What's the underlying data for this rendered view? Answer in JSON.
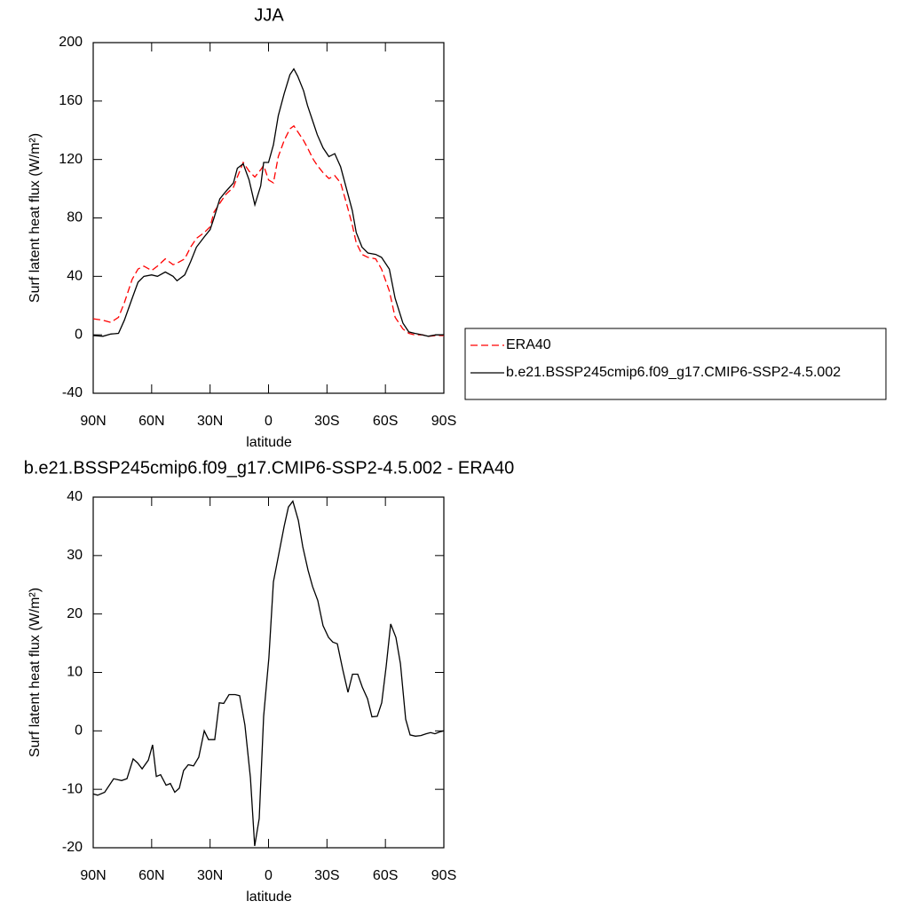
{
  "chart_data": [
    {
      "type": "line",
      "title": "JJA",
      "xlabel": "latitude",
      "ylabel": "Surf latent heat flux (W/m²)",
      "xlim": [
        90,
        -90
      ],
      "ylim": [
        -40,
        200
      ],
      "xticks": [
        {
          "value": 90,
          "label": "90N"
        },
        {
          "value": 60,
          "label": "60N"
        },
        {
          "value": 30,
          "label": "30N"
        },
        0,
        {
          "value": -30,
          "label": "30S"
        },
        {
          "value": -60,
          "label": "60S"
        },
        {
          "value": -90,
          "label": "90S"
        }
      ],
      "yticks": [
        -40,
        0,
        40,
        80,
        120,
        160,
        200
      ],
      "legend": "right",
      "x": [
        90,
        85,
        81,
        77,
        74,
        70,
        67,
        64,
        60,
        57,
        53,
        49,
        47,
        43,
        40,
        37,
        33,
        30,
        28,
        25,
        22,
        18,
        16,
        13,
        10,
        7,
        4,
        2.5,
        0,
        -2.5,
        -5,
        -8,
        -11,
        -13,
        -15,
        -18,
        -20,
        -23,
        -25,
        -28,
        -31,
        -34,
        -37,
        -40,
        -43,
        -45,
        -48,
        -51,
        -55,
        -58,
        -62,
        -65,
        -69,
        -72,
        -75,
        -79,
        -82,
        -86,
        -90
      ],
      "series": [
        {
          "name": "ERA40",
          "color": "#ff0000",
          "line_style": "dashed",
          "values": [
            11,
            10,
            8.5,
            12,
            22,
            38,
            45,
            47,
            44,
            47,
            52,
            48,
            49,
            52,
            60,
            66,
            70,
            74,
            84,
            90,
            96,
            101,
            108,
            118,
            112,
            108,
            113,
            116,
            106,
            104,
            122,
            133,
            141,
            143,
            139,
            133,
            128,
            120,
            116,
            111,
            107,
            109,
            104,
            90,
            75,
            63,
            55,
            53,
            52,
            45,
            30,
            12,
            4,
            1,
            0,
            0,
            -1,
            -0.5,
            -0.5
          ]
        },
        {
          "name": "b.e21.BSSP245cmip6.f09_g17.CMIP6-SSP2-4.5.002",
          "color": "#000000",
          "line_style": "solid",
          "values": [
            -0.5,
            -1,
            0.5,
            1,
            10,
            25,
            36,
            40,
            41,
            40,
            43,
            40,
            37,
            41,
            50,
            60,
            67,
            72,
            80,
            93,
            98,
            104,
            114,
            117,
            106,
            89,
            102,
            118,
            118,
            130,
            150,
            165,
            178,
            182,
            177,
            167,
            157,
            145,
            137,
            128,
            122,
            124,
            115,
            100,
            85,
            70,
            60,
            56,
            55,
            53,
            45,
            25,
            8,
            2,
            1,
            0,
            -1,
            0,
            0
          ]
        }
      ]
    },
    {
      "type": "line",
      "title": "b.e21.BSSP245cmip6.f09_g17.CMIP6-SSP2-4.5.002 - ERA40",
      "xlabel": "latitude",
      "ylabel": "Surf latent heat flux (W/m²)",
      "xlim": [
        90,
        -90
      ],
      "ylim": [
        -20,
        40
      ],
      "xticks": [
        {
          "value": 90,
          "label": "90N"
        },
        {
          "value": 60,
          "label": "60N"
        },
        {
          "value": 30,
          "label": "30N"
        },
        0,
        {
          "value": -30,
          "label": "30S"
        },
        {
          "value": -60,
          "label": "60S"
        },
        {
          "value": -90,
          "label": "90S"
        }
      ],
      "yticks": [
        -20,
        -10,
        0,
        10,
        20,
        30,
        40
      ],
      "color": "#000000",
      "x": [
        90,
        87.7,
        84.1,
        79.5,
        75.4,
        72.7,
        69.5,
        67.2,
        64.9,
        61.7,
        59.5,
        57.6,
        55.4,
        52.6,
        50.4,
        48.1,
        45.8,
        43.6,
        41.2,
        38.5,
        35.8,
        33,
        30.8,
        27.6,
        25.3,
        23,
        20.3,
        17.1,
        14.8,
        12.1,
        9.3,
        7.1,
        4.8,
        2.5,
        -0.2,
        -2.5,
        -5.7,
        -8,
        -10.2,
        -12.5,
        -15.3,
        -17.6,
        -20.3,
        -22.6,
        -25.3,
        -28,
        -30.8,
        -33,
        -35.3,
        -38.1,
        -40.8,
        -43.1,
        -45.8,
        -48.1,
        -50.8,
        -53.1,
        -55.8,
        -58.1,
        -60.4,
        -62.7,
        -65.4,
        -67.7,
        -70.4,
        -72.7,
        -75.4,
        -78.2,
        -80.9,
        -83.2,
        -85.4,
        -87.7,
        -90
      ],
      "values": [
        -10.8,
        -11,
        -10.5,
        -8.2,
        -8.5,
        -8.2,
        -4.8,
        -5.5,
        -6.5,
        -5,
        -2.4,
        -7.8,
        -7.5,
        -9.3,
        -9,
        -10.5,
        -9.8,
        -6.8,
        -5.8,
        -6,
        -4.5,
        0,
        -1.5,
        -1.5,
        4.8,
        4.7,
        6.2,
        6.2,
        6,
        1,
        -8,
        -19.7,
        -15,
        2.5,
        12.5,
        25.5,
        31,
        35,
        38.3,
        39.3,
        36,
        31.5,
        27.5,
        24.7,
        22.3,
        18,
        16,
        15.2,
        14.9,
        10.5,
        6.6,
        9.7,
        9.7,
        7.5,
        5.5,
        2.4,
        2.5,
        4.8,
        11,
        18.3,
        16,
        11.5,
        2,
        -0.7,
        -0.9,
        -0.8,
        -0.5,
        -0.3,
        -0.5,
        -0.2,
        0
      ]
    }
  ]
}
